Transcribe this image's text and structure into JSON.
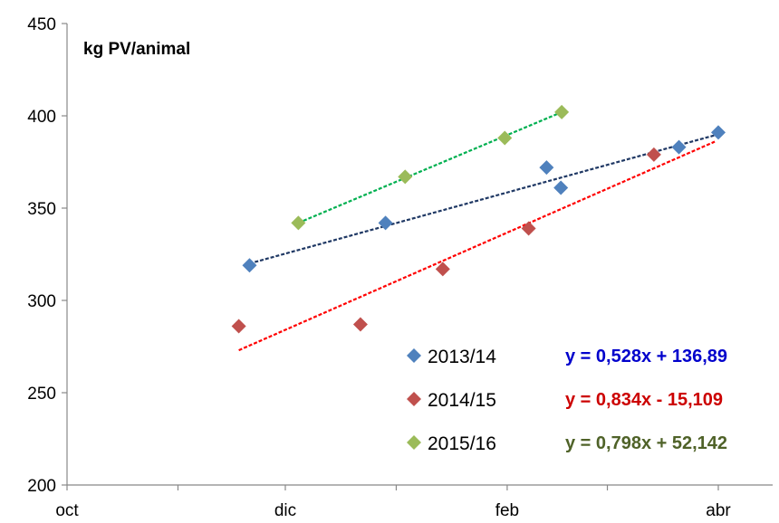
{
  "chart_data": {
    "type": "scatter",
    "title": "",
    "xlabel": "",
    "ylabel": "kg PV/animal",
    "ylim": [
      200,
      450
    ],
    "y_ticks": [
      200,
      250,
      300,
      350,
      400,
      450
    ],
    "x_tick_labels": [
      "oct",
      "dic",
      "feb",
      "abr"
    ],
    "grid": false,
    "legend_position": "bottom-center",
    "series": [
      {
        "name": "2013/14",
        "color": "#4f81bd",
        "trend_color": "#1f3864",
        "x": [
          "2013-11-21",
          "2013-12-29",
          "2014-02-12",
          "2014-02-16",
          "2014-03-21",
          "2014-04-01"
        ],
        "y": [
          319,
          342,
          372,
          361,
          383,
          391
        ],
        "trendline": {
          "from": [
            "2013-11-21",
            320
          ],
          "to": [
            "2014-04-01",
            390
          ]
        },
        "equation": "y = 0,528x + 136,89",
        "equation_color": "#0000cc"
      },
      {
        "name": "2014/15",
        "color": "#c0504d",
        "trend_color": "#ff0000",
        "x": [
          "2014-11-18",
          "2014-12-22",
          "2015-01-14",
          "2015-02-07",
          "2015-03-14"
        ],
        "y": [
          286,
          287,
          317,
          339,
          379
        ],
        "trendline": {
          "from": [
            "2014-11-18",
            273
          ],
          "to": [
            "2015-03-31",
            386
          ]
        },
        "equation": "y = 0,834x  - 15,109",
        "equation_color": "#cc0000"
      },
      {
        "name": "2015/16",
        "color": "#9bbb59",
        "trend_color": "#00b050",
        "x": [
          "2015-12-05",
          "2016-01-04",
          "2016-02-01",
          "2016-02-17"
        ],
        "y": [
          342,
          367,
          388,
          402
        ],
        "trendline": {
          "from": [
            "2015-12-05",
            342
          ],
          "to": [
            "2016-02-17",
            402
          ]
        },
        "equation": "y = 0,798x + 52,142",
        "equation_color": "#4f6228"
      }
    ]
  }
}
